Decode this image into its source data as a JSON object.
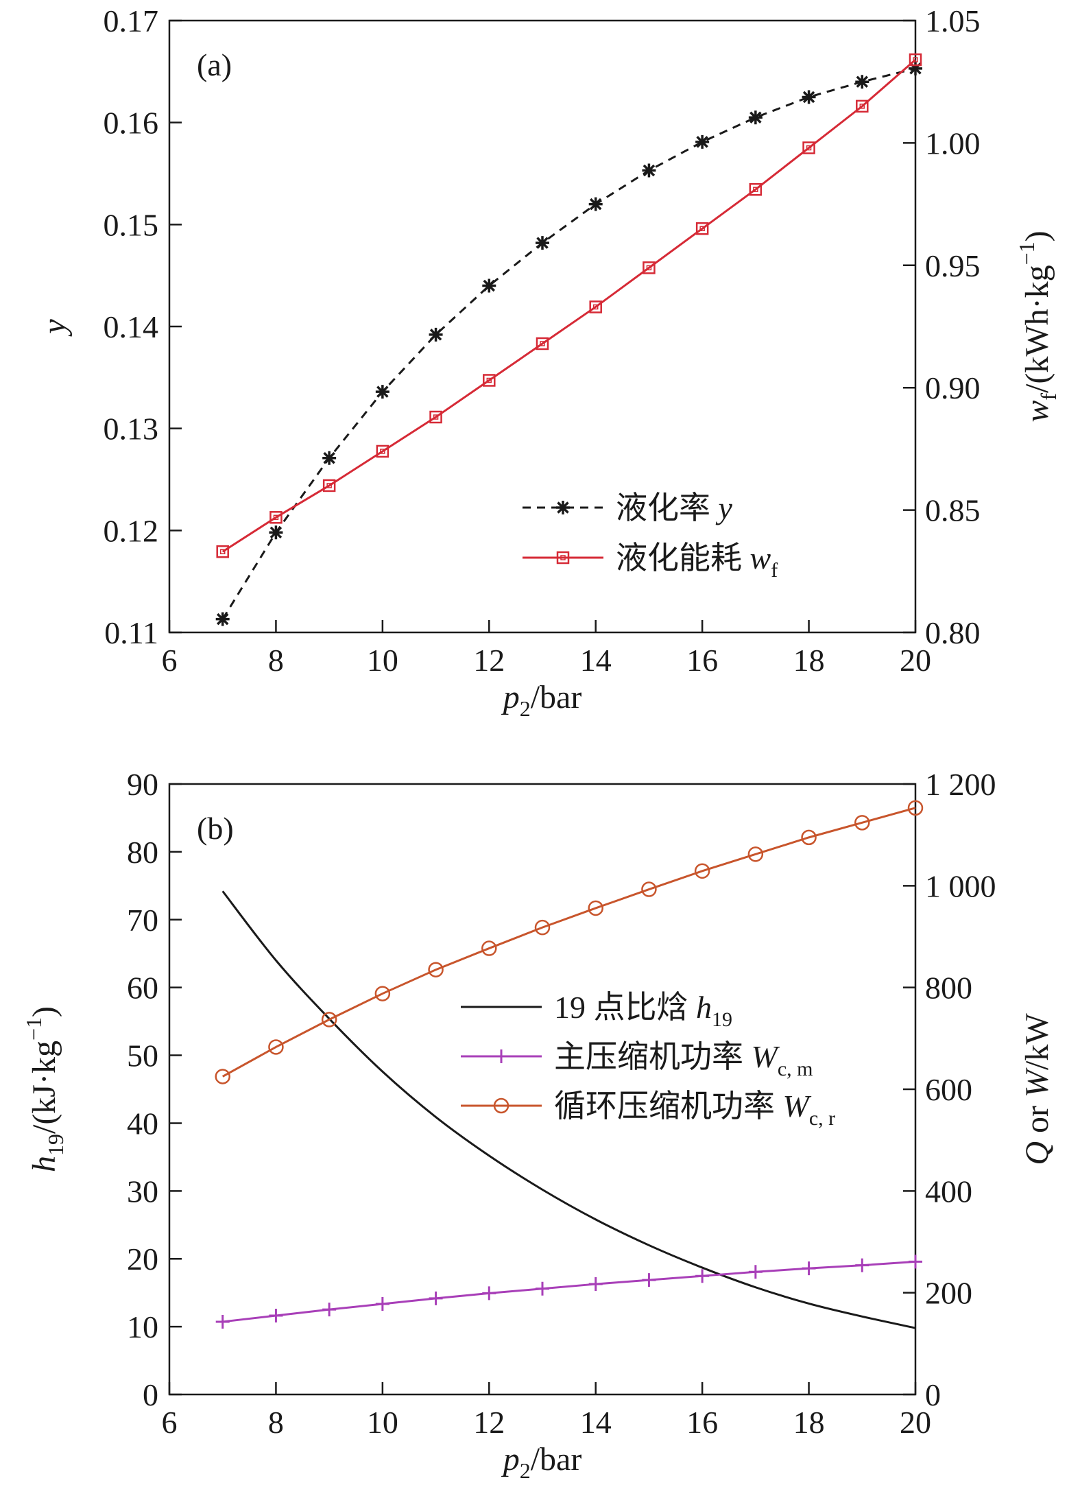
{
  "chart_data": [
    {
      "type": "line",
      "panel_tag": "(a)",
      "xlabel": {
        "main": "p",
        "sub": "2",
        "unit": "/bar"
      },
      "ylabel_left": "y",
      "ylabel_right": {
        "main": "w",
        "sub": "f",
        "unit_pre": "/(kWh·kg",
        "sup": "−1",
        "unit_post": ")"
      },
      "xlim": [
        6,
        20
      ],
      "xticks": [
        "6",
        "8",
        "10",
        "12",
        "14",
        "16",
        "18",
        "20"
      ],
      "ylim_left": [
        0.11,
        0.17
      ],
      "yticks_left": [
        "0.11",
        "0.12",
        "0.13",
        "0.14",
        "0.15",
        "0.16",
        "0.17"
      ],
      "ylim_right": [
        0.8,
        1.05
      ],
      "yticks_right": [
        "0.80",
        "0.85",
        "0.90",
        "0.95",
        "1.00",
        "1.05"
      ],
      "legend_position": "lower-right",
      "series": [
        {
          "name": "液化率 y",
          "name_main": "液化率 ",
          "name_var": "y",
          "name_sub": "",
          "axis": "left",
          "style": "dashed",
          "marker": "asterisk",
          "color": "#1a1a1a",
          "x": [
            7,
            8,
            9,
            10,
            11,
            12,
            13,
            14,
            15,
            16,
            17,
            18,
            19,
            20
          ],
          "y": [
            0.1113,
            0.1198,
            0.1271,
            0.1336,
            0.1392,
            0.144,
            0.1482,
            0.152,
            0.1553,
            0.1581,
            0.1605,
            0.1625,
            0.164,
            0.1653
          ]
        },
        {
          "name": "液化能耗 wf",
          "name_main": "液化能耗 ",
          "name_var": "w",
          "name_sub": "f",
          "axis": "right",
          "style": "solid",
          "marker": "square",
          "color": "#d62a36",
          "x": [
            7,
            8,
            9,
            10,
            11,
            12,
            13,
            14,
            15,
            16,
            17,
            18,
            19,
            20
          ],
          "y": [
            0.833,
            0.847,
            0.86,
            0.874,
            0.888,
            0.903,
            0.918,
            0.933,
            0.949,
            0.965,
            0.981,
            0.998,
            1.015,
            1.034
          ]
        }
      ]
    },
    {
      "type": "line",
      "panel_tag": "(b)",
      "xlabel": {
        "main": "p",
        "sub": "2",
        "unit": "/bar"
      },
      "ylabel_left": {
        "main": "h",
        "sub": "19",
        "unit_pre": "/(kJ·kg",
        "sup": "−1",
        "unit_post": ")"
      },
      "ylabel_right": {
        "main_a": "Q",
        "mid": " or ",
        "main_b": "W",
        "unit": "/kW"
      },
      "xlim": [
        6,
        20
      ],
      "xticks": [
        "6",
        "8",
        "10",
        "12",
        "14",
        "16",
        "18",
        "20"
      ],
      "ylim_left": [
        0,
        90
      ],
      "yticks_left": [
        "0",
        "10",
        "20",
        "30",
        "40",
        "50",
        "60",
        "70",
        "80",
        "90"
      ],
      "ylim_right": [
        0,
        1200
      ],
      "yticks_right": [
        "0",
        "200",
        "400",
        "600",
        "800",
        "1 000",
        "1 200"
      ],
      "legend_position": "center",
      "series": [
        {
          "name": "19 点比焓 h19",
          "name_main": "19 点比焓 ",
          "name_var": "h",
          "name_sub": "19",
          "axis": "left",
          "style": "solid",
          "marker": "none",
          "color": "#1a1a1a",
          "x": [
            7,
            8,
            9,
            10,
            11,
            12,
            13,
            14,
            15,
            16,
            17,
            18,
            19,
            20
          ],
          "y": [
            74.2,
            64.0,
            55.4,
            47.6,
            40.9,
            35.2,
            30.2,
            25.8,
            22.0,
            18.7,
            15.8,
            13.4,
            11.5,
            9.8
          ]
        },
        {
          "name": "主压缩机功率 Wc, m",
          "name_main": "主压缩机功率 ",
          "name_var": "W",
          "name_sub": "c, m",
          "axis": "right",
          "style": "solid",
          "marker": "plus",
          "color": "#a83fb8",
          "x": [
            7,
            8,
            9,
            10,
            11,
            12,
            13,
            14,
            15,
            16,
            17,
            18,
            19,
            20
          ],
          "y": [
            143,
            155,
            167,
            178,
            189,
            199,
            208,
            217,
            225,
            233,
            241,
            248,
            254,
            261
          ]
        },
        {
          "name": "循环压缩机功率 Wc, r",
          "name_main": "循环压缩机功率 ",
          "name_var": "W",
          "name_sub": "c, r",
          "axis": "right",
          "style": "solid",
          "marker": "circle",
          "color": "#c8552c",
          "x": [
            7,
            8,
            9,
            10,
            11,
            12,
            13,
            14,
            15,
            16,
            17,
            18,
            19,
            20
          ],
          "y": [
            625,
            683,
            737,
            788,
            835,
            877,
            918,
            956,
            993,
            1029,
            1062,
            1095,
            1124,
            1153
          ]
        }
      ]
    }
  ]
}
